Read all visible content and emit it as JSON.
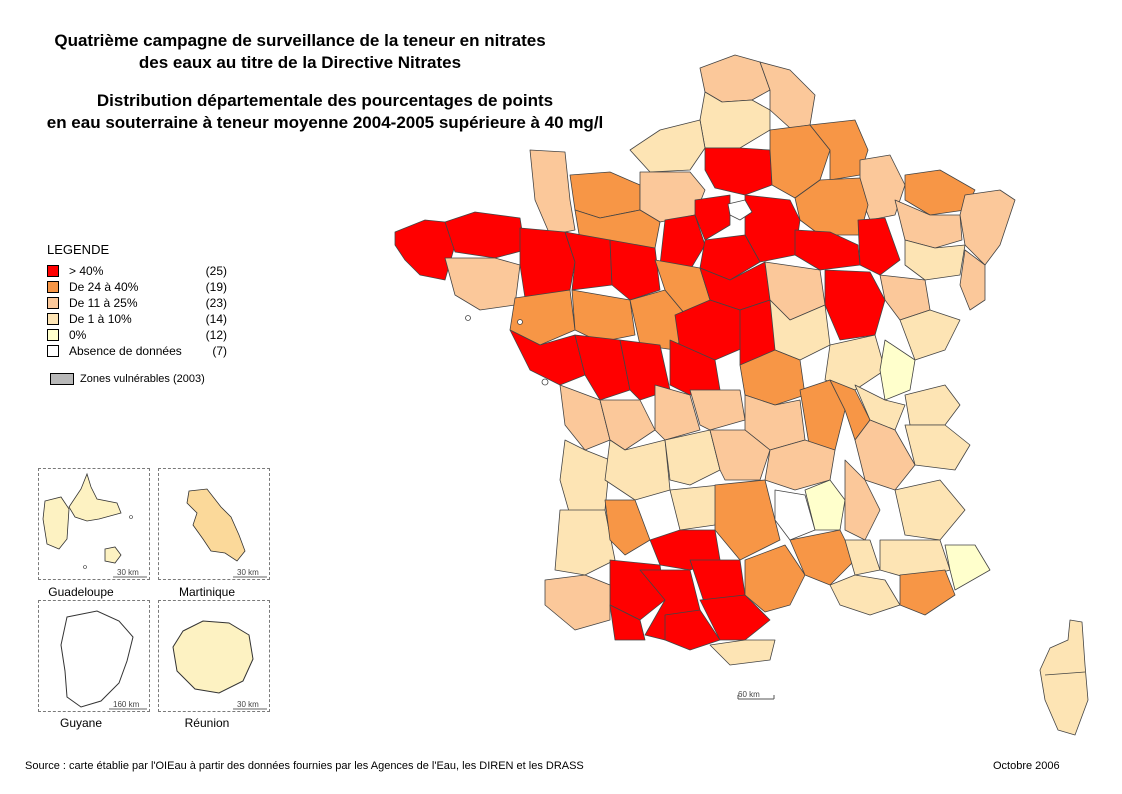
{
  "title": {
    "line1": "Quatrième campagne de surveillance de la teneur en nitrates",
    "line2": "des eaux au titre de la Directive Nitrates",
    "line3": "Distribution départementale des pourcentages de points",
    "line4": "en eau souterraine à teneur moyenne 2004-2005 supérieure à 40 mg/l"
  },
  "legend": {
    "heading": "LEGENDE",
    "classes": [
      {
        "label": "> 40%",
        "count": "(25)",
        "color": "#ff0000"
      },
      {
        "label": "De 24 à 40%",
        "count": "(19)",
        "color": "#f79646"
      },
      {
        "label": "De 11 à 25%",
        "count": "(23)",
        "color": "#fbc89a"
      },
      {
        "label": "De 1 à 10%",
        "count": "(14)",
        "color": "#fde4b4"
      },
      {
        "label": "0%",
        "count": "(12)",
        "color": "#ffffcc"
      },
      {
        "label": "Absence de données",
        "count": "(7)",
        "color": "#ffffff"
      }
    ],
    "zones_label": "Zones vulnérables (2003)"
  },
  "insets": [
    {
      "name": "Guadeloupe",
      "scale": "30 km",
      "color": "#fdf2c2"
    },
    {
      "name": "Martinique",
      "scale": "30 km",
      "color": "#fbd99a"
    },
    {
      "name": "Guyane",
      "scale": "160 km",
      "color": "#ffffff"
    },
    {
      "name": "Réunion",
      "scale": "30 km",
      "color": "#fdf2c2"
    }
  ],
  "map_scale": "60 km",
  "footer": {
    "source": "Source : carte établie par l'OIEau à partir des données fournies par les Agences de l'Eau, les DIREN et les DRASS",
    "date": "Octobre 2006"
  }
}
